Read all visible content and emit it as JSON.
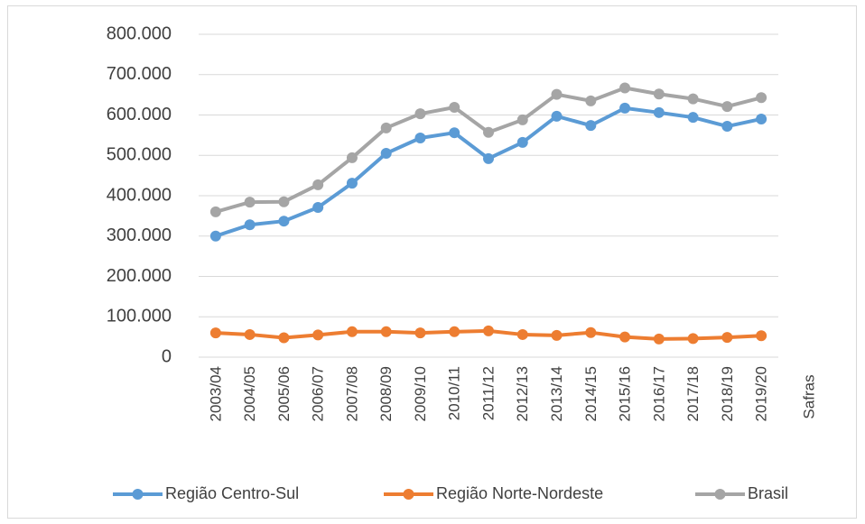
{
  "chart_data": {
    "type": "line",
    "x_label": "Safras",
    "categories": [
      "2003/04",
      "2004/05",
      "2005/06",
      "2006/07",
      "2007/08",
      "2008/09",
      "2009/10",
      "2010/11",
      "2011/12",
      "2012/13",
      "2013/14",
      "2014/15",
      "2015/16",
      "2016/17",
      "2017/18",
      "2018/19",
      "2019/20"
    ],
    "series": [
      {
        "name": "Região Centro-Sul",
        "color": "#5b9bd5",
        "values": [
          300000,
          328000,
          337000,
          371000,
          431000,
          505000,
          543000,
          556000,
          492000,
          532000,
          597000,
          574000,
          617000,
          606000,
          594000,
          572000,
          590000
        ]
      },
      {
        "name": "Região Norte-Nordeste",
        "color": "#ed7d31",
        "values": [
          60000,
          56000,
          48000,
          55000,
          63000,
          63000,
          60000,
          63000,
          65000,
          56000,
          54000,
          61000,
          50000,
          45000,
          46000,
          49000,
          53000
        ]
      },
      {
        "name": "Brasil",
        "color": "#a5a5a5",
        "values": [
          360000,
          384000,
          385000,
          427000,
          494000,
          568000,
          603000,
          619000,
          557000,
          588000,
          651000,
          635000,
          667000,
          652000,
          640000,
          621000,
          643000
        ]
      }
    ],
    "ylim": [
      0,
      800000
    ],
    "yticks": [
      0,
      {
        "value": 100000,
        "label": "100.000"
      },
      {
        "value": 200000,
        "label": "200.000"
      },
      {
        "value": 300000,
        "label": "300.000"
      },
      {
        "value": 400000,
        "label": "400.000"
      },
      {
        "value": 500000,
        "label": "500.000"
      },
      {
        "value": 600000,
        "label": "600.000"
      },
      {
        "value": 700000,
        "label": "700.000"
      },
      {
        "value": 800000,
        "label": "800.000"
      }
    ],
    "grid": true,
    "legend": "bottom"
  }
}
